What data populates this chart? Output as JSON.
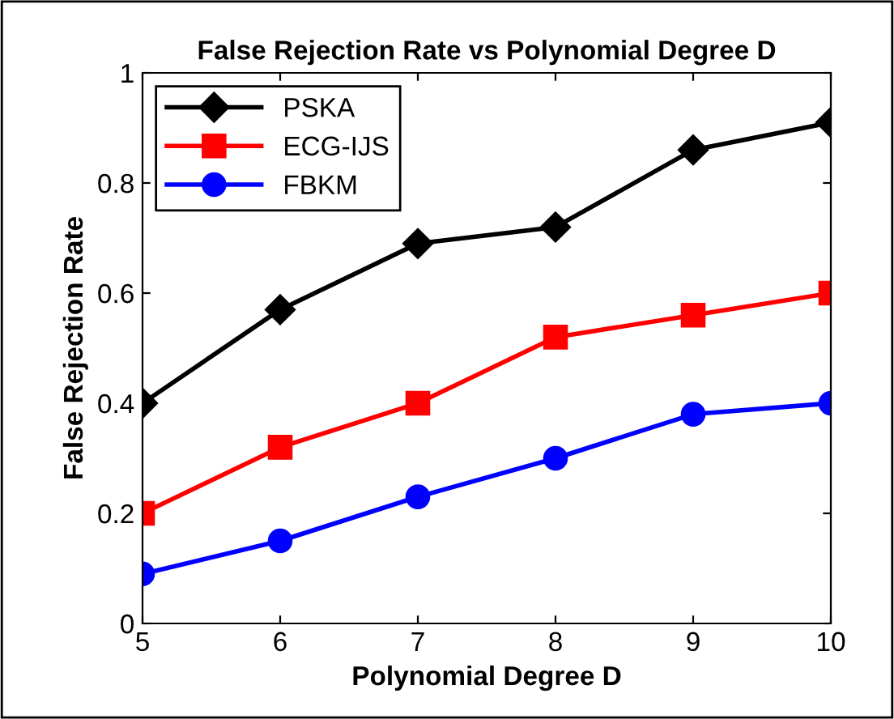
{
  "chart_data": {
    "type": "line",
    "title": "False Rejection Rate vs Polynomial Degree D",
    "xlabel": "Polynomial Degree D",
    "ylabel": "False Rejection Rate",
    "x": [
      5,
      6,
      7,
      8,
      9,
      10
    ],
    "series": [
      {
        "name": "PSKA",
        "color": "#000000",
        "marker": "diamond",
        "values": [
          0.4,
          0.57,
          0.69,
          0.72,
          0.86,
          0.91
        ]
      },
      {
        "name": "ECG-IJS",
        "color": "#ff0000",
        "marker": "square",
        "values": [
          0.2,
          0.32,
          0.4,
          0.52,
          0.56,
          0.6
        ]
      },
      {
        "name": "FBKM",
        "color": "#0000ff",
        "marker": "circle",
        "values": [
          0.09,
          0.15,
          0.23,
          0.3,
          0.38,
          0.4
        ]
      }
    ],
    "xlim": [
      5,
      10
    ],
    "xticks": [
      5,
      6,
      7,
      8,
      9,
      10
    ],
    "ylim": [
      0,
      1
    ],
    "yticks": [
      0,
      0.2,
      0.4,
      0.6,
      0.8,
      1
    ],
    "legend": "top left",
    "grid": false,
    "line_style": "solid"
  }
}
